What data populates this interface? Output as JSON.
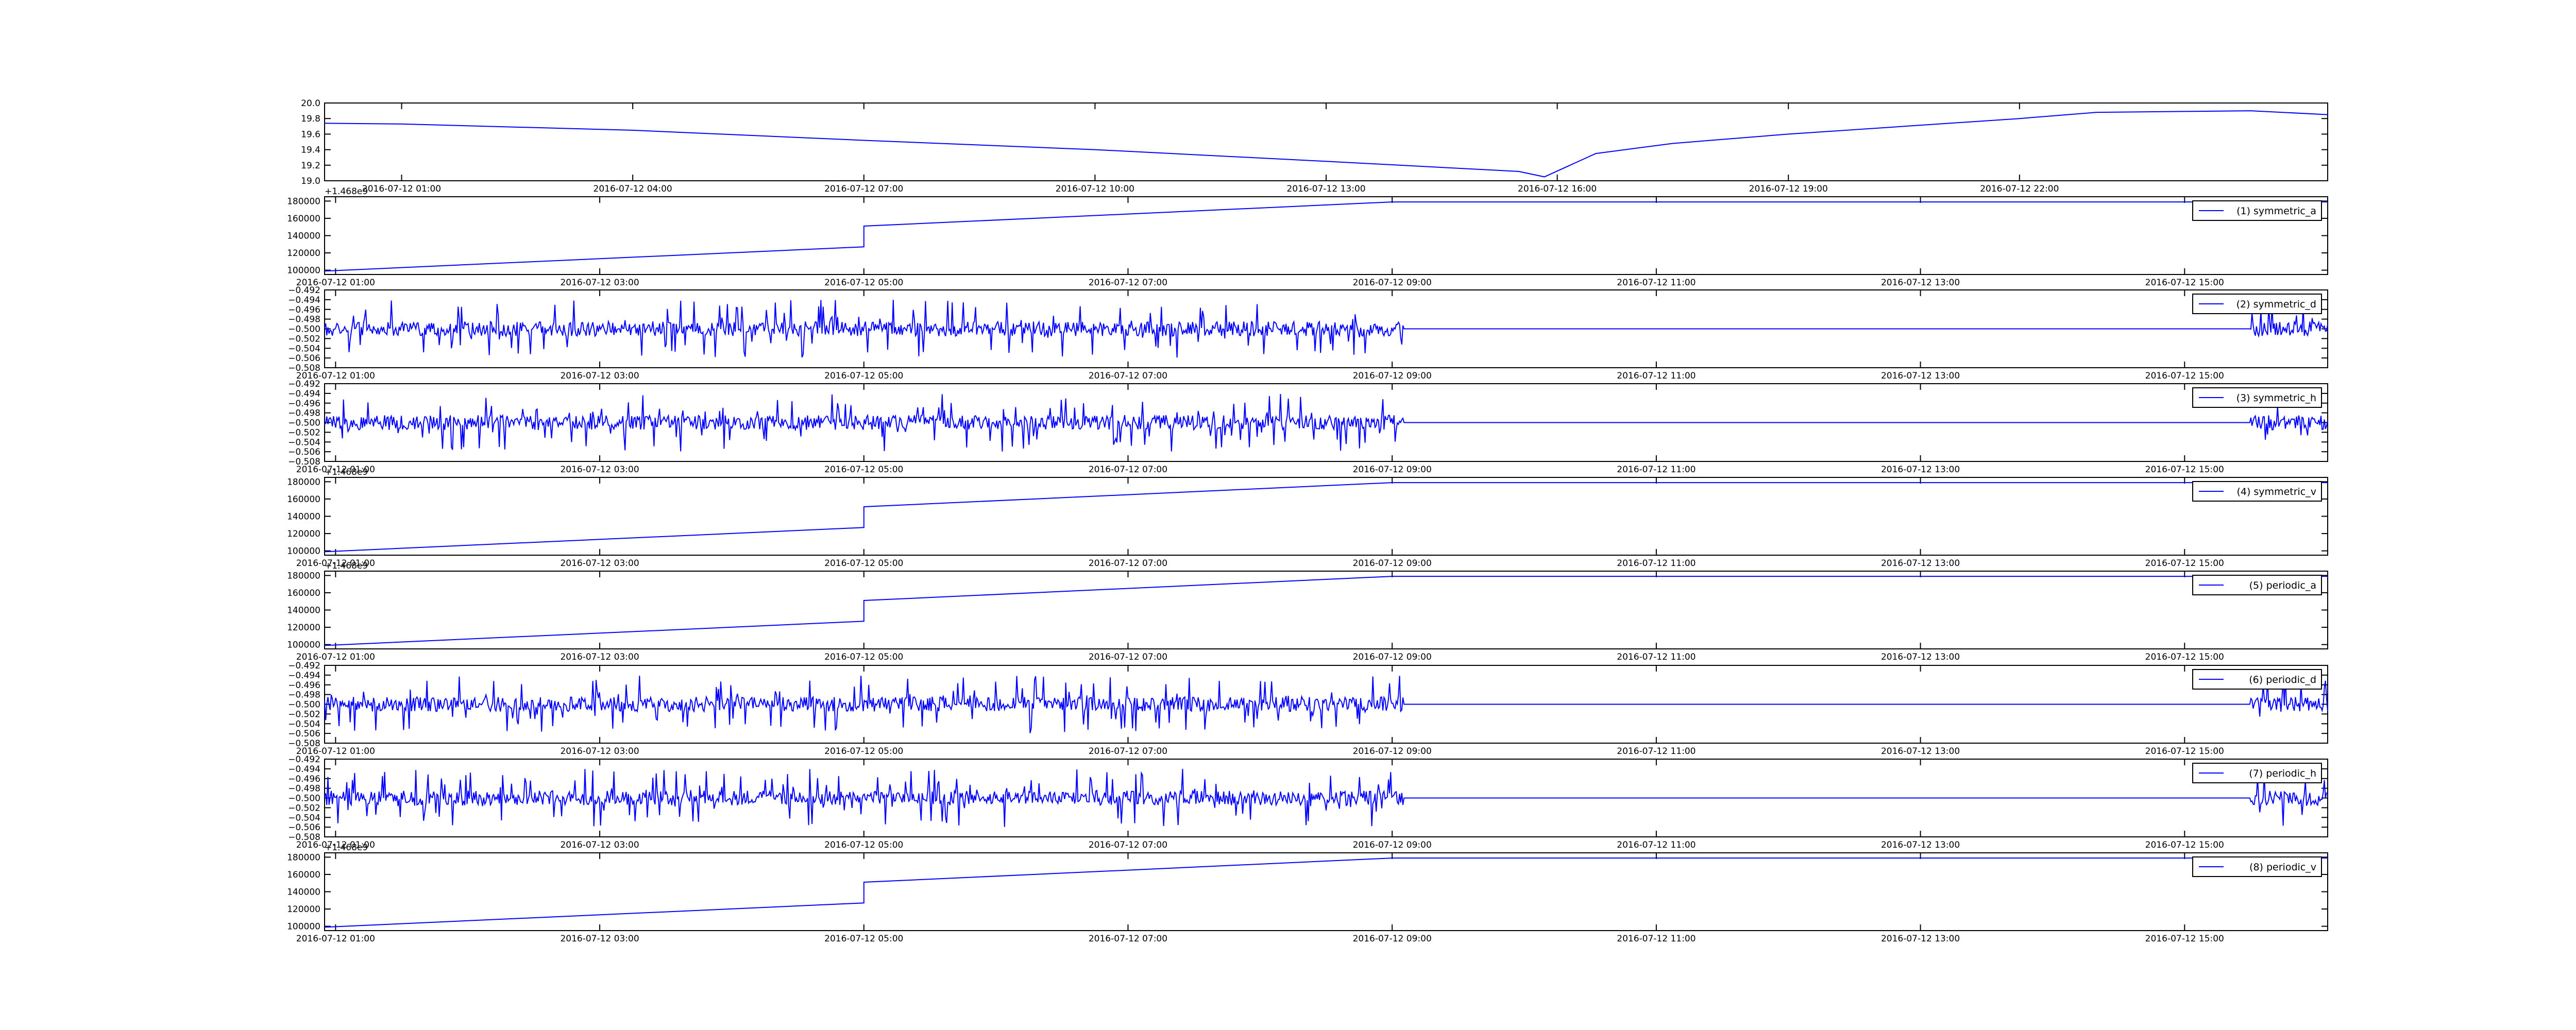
{
  "colors": {
    "line": "#0000ff",
    "axes": "#000000",
    "background": "#ffffff"
  },
  "chart_data": [
    {
      "type": "line",
      "title": "",
      "xlabel": "",
      "ylabel": "",
      "x_ticks": [
        "2016-07-12 01:00",
        "2016-07-12 04:00",
        "2016-07-12 07:00",
        "2016-07-12 10:00",
        "2016-07-12 13:00",
        "2016-07-12 16:00",
        "2016-07-12 19:00",
        "2016-07-12 22:00"
      ],
      "y_ticks": [
        "19.0",
        "19.2",
        "19.4",
        "19.6",
        "19.8",
        "20.0"
      ],
      "ylim": [
        19.0,
        20.0
      ],
      "legend": null,
      "series": [
        {
          "pattern": "line",
          "x": [
            "2016-07-12 00:00",
            "2016-07-12 01:00",
            "2016-07-12 04:00",
            "2016-07-12 07:00",
            "2016-07-12 10:00",
            "2016-07-12 13:00",
            "2016-07-12 15:30",
            "2016-07-12 15:50",
            "2016-07-12 16:30",
            "2016-07-12 17:30",
            "2016-07-12 19:00",
            "2016-07-12 22:00",
            "2016-07-12 23:00",
            "2016-07-13 01:00",
            "2016-07-13 02:00"
          ],
          "y": [
            19.74,
            19.73,
            19.65,
            19.52,
            19.4,
            19.25,
            19.12,
            19.05,
            19.35,
            19.48,
            19.6,
            19.8,
            19.88,
            19.9,
            19.85
          ]
        }
      ]
    },
    {
      "type": "line",
      "title": "",
      "x_ticks": [
        "2016-07-12 01:00",
        "2016-07-12 03:00",
        "2016-07-12 05:00",
        "2016-07-12 07:00",
        "2016-07-12 09:00",
        "2016-07-12 11:00",
        "2016-07-12 13:00",
        "2016-07-12 15:00"
      ],
      "y_ticks": [
        "100000",
        "120000",
        "140000",
        "160000",
        "180000"
      ],
      "ylim": [
        95000,
        185000
      ],
      "offset_text": "+1.468e9",
      "legend": "top-right",
      "series": [
        {
          "name": "(1) symmetric_a",
          "pattern": "line",
          "x": [
            "2016-07-12 00:55",
            "2016-07-12 05:00",
            "2016-07-12 05:00",
            "2016-07-12 09:00",
            "2016-07-12 16:05"
          ],
          "y": [
            99000,
            127000,
            151000,
            179000,
            179000
          ]
        }
      ]
    },
    {
      "type": "line",
      "title": "",
      "x_ticks": [
        "2016-07-12 01:00",
        "2016-07-12 03:00",
        "2016-07-12 05:00",
        "2016-07-12 07:00",
        "2016-07-12 09:00",
        "2016-07-12 11:00",
        "2016-07-12 13:00",
        "2016-07-12 15:00"
      ],
      "y_ticks": [
        "−0.508",
        "−0.506",
        "−0.504",
        "−0.502",
        "−0.500",
        "−0.498",
        "−0.496",
        "−0.494",
        "−0.492"
      ],
      "ylim": [
        -0.508,
        -0.492
      ],
      "legend": "top-right",
      "series": [
        {
          "name": "(2) symmetric_d",
          "pattern": "noise",
          "baseline": -0.5,
          "amplitude": 0.006,
          "active_ranges": [
            [
              "2016-07-12 00:55",
              "2016-07-12 09:05"
            ],
            [
              "2016-07-12 15:30",
              "2016-07-12 16:05"
            ]
          ],
          "x_range": [
            "2016-07-12 00:55",
            "2016-07-12 16:05"
          ]
        }
      ]
    },
    {
      "type": "line",
      "title": "",
      "x_ticks": [
        "2016-07-12 01:00",
        "2016-07-12 03:00",
        "2016-07-12 05:00",
        "2016-07-12 07:00",
        "2016-07-12 09:00",
        "2016-07-12 11:00",
        "2016-07-12 13:00",
        "2016-07-12 15:00"
      ],
      "y_ticks": [
        "−0.508",
        "−0.506",
        "−0.504",
        "−0.502",
        "−0.500",
        "−0.498",
        "−0.496",
        "−0.494",
        "−0.492"
      ],
      "ylim": [
        -0.508,
        -0.492
      ],
      "legend": "top-right",
      "series": [
        {
          "name": "(3) symmetric_h",
          "pattern": "noise",
          "baseline": -0.5,
          "amplitude": 0.006,
          "active_ranges": [
            [
              "2016-07-12 00:55",
              "2016-07-12 09:05"
            ],
            [
              "2016-07-12 15:30",
              "2016-07-12 16:05"
            ]
          ],
          "x_range": [
            "2016-07-12 00:55",
            "2016-07-12 16:05"
          ]
        }
      ]
    },
    {
      "type": "line",
      "title": "",
      "x_ticks": [
        "2016-07-12 01:00",
        "2016-07-12 03:00",
        "2016-07-12 05:00",
        "2016-07-12 07:00",
        "2016-07-12 09:00",
        "2016-07-12 11:00",
        "2016-07-12 13:00",
        "2016-07-12 15:00"
      ],
      "y_ticks": [
        "100000",
        "120000",
        "140000",
        "160000",
        "180000"
      ],
      "ylim": [
        95000,
        185000
      ],
      "offset_text": "+1.468e9",
      "legend": "top-right",
      "series": [
        {
          "name": "(4) symmetric_v",
          "pattern": "line",
          "x": [
            "2016-07-12 00:55",
            "2016-07-12 05:00",
            "2016-07-12 05:00",
            "2016-07-12 09:00",
            "2016-07-12 16:05"
          ],
          "y": [
            99000,
            127000,
            151000,
            179000,
            179000
          ]
        }
      ]
    },
    {
      "type": "line",
      "title": "",
      "x_ticks": [
        "2016-07-12 01:00",
        "2016-07-12 03:00",
        "2016-07-12 05:00",
        "2016-07-12 07:00",
        "2016-07-12 09:00",
        "2016-07-12 11:00",
        "2016-07-12 13:00",
        "2016-07-12 15:00"
      ],
      "y_ticks": [
        "100000",
        "120000",
        "140000",
        "160000",
        "180000"
      ],
      "ylim": [
        95000,
        185000
      ],
      "offset_text": "+1.468e9",
      "legend": "top-right",
      "series": [
        {
          "name": "(5) periodic_a",
          "pattern": "line",
          "x": [
            "2016-07-12 00:55",
            "2016-07-12 05:00",
            "2016-07-12 05:00",
            "2016-07-12 09:00",
            "2016-07-12 16:05"
          ],
          "y": [
            99000,
            127000,
            151000,
            179000,
            179000
          ]
        }
      ]
    },
    {
      "type": "line",
      "title": "",
      "x_ticks": [
        "2016-07-12 01:00",
        "2016-07-12 03:00",
        "2016-07-12 05:00",
        "2016-07-12 07:00",
        "2016-07-12 09:00",
        "2016-07-12 11:00",
        "2016-07-12 13:00",
        "2016-07-12 15:00"
      ],
      "y_ticks": [
        "−0.508",
        "−0.506",
        "−0.504",
        "−0.502",
        "−0.500",
        "−0.498",
        "−0.496",
        "−0.494",
        "−0.492"
      ],
      "ylim": [
        -0.508,
        -0.492
      ],
      "legend": "top-right",
      "series": [
        {
          "name": "(6) periodic_d",
          "pattern": "noise",
          "baseline": -0.5,
          "amplitude": 0.006,
          "active_ranges": [
            [
              "2016-07-12 00:55",
              "2016-07-12 09:05"
            ],
            [
              "2016-07-12 15:30",
              "2016-07-12 16:05"
            ]
          ],
          "x_range": [
            "2016-07-12 00:55",
            "2016-07-12 16:05"
          ]
        }
      ]
    },
    {
      "type": "line",
      "title": "",
      "x_ticks": [
        "2016-07-12 01:00",
        "2016-07-12 03:00",
        "2016-07-12 05:00",
        "2016-07-12 07:00",
        "2016-07-12 09:00",
        "2016-07-12 11:00",
        "2016-07-12 13:00",
        "2016-07-12 15:00"
      ],
      "y_ticks": [
        "−0.508",
        "−0.506",
        "−0.504",
        "−0.502",
        "−0.500",
        "−0.498",
        "−0.496",
        "−0.494",
        "−0.492"
      ],
      "ylim": [
        -0.508,
        -0.492
      ],
      "legend": "top-right",
      "series": [
        {
          "name": "(7) periodic_h",
          "pattern": "noise",
          "baseline": -0.5,
          "amplitude": 0.006,
          "active_ranges": [
            [
              "2016-07-12 00:55",
              "2016-07-12 09:05"
            ],
            [
              "2016-07-12 15:30",
              "2016-07-12 16:05"
            ]
          ],
          "x_range": [
            "2016-07-12 00:55",
            "2016-07-12 16:05"
          ]
        }
      ]
    },
    {
      "type": "line",
      "title": "",
      "x_ticks": [
        "2016-07-12 01:00",
        "2016-07-12 03:00",
        "2016-07-12 05:00",
        "2016-07-12 07:00",
        "2016-07-12 09:00",
        "2016-07-12 11:00",
        "2016-07-12 13:00",
        "2016-07-12 15:00"
      ],
      "y_ticks": [
        "100000",
        "120000",
        "140000",
        "160000",
        "180000"
      ],
      "ylim": [
        95000,
        185000
      ],
      "offset_text": "+1.468e9",
      "legend": "top-right",
      "series": [
        {
          "name": "(8) periodic_v",
          "pattern": "line",
          "x": [
            "2016-07-12 00:55",
            "2016-07-12 05:00",
            "2016-07-12 05:00",
            "2016-07-12 09:00",
            "2016-07-12 16:05"
          ],
          "y": [
            99000,
            127000,
            151000,
            179000,
            179000
          ]
        }
      ]
    }
  ]
}
